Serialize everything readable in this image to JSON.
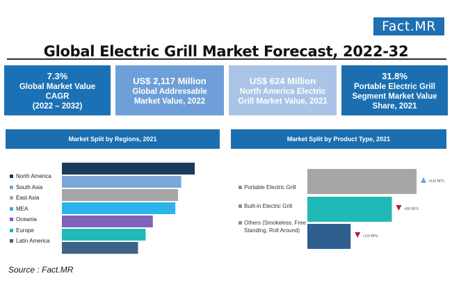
{
  "logo": "Fact.MR",
  "title": "Global Electric Grill Market Forecast, 2022-32",
  "kpis": [
    {
      "value": "7.3%",
      "l1": "Global Market Value",
      "l2": "CAGR",
      "l3": "(2022 – 2032)"
    },
    {
      "value": "US$ 2,117 Million",
      "l1": "Global Addressable",
      "l2": "Market Value, 2022"
    },
    {
      "value": "US$ 624 Million",
      "l1": "North America Electric",
      "l2": "Grill Market Value, 2021"
    },
    {
      "value": "31.8%",
      "l1": "Portable Electric Grill",
      "l2": "Segment Market Value",
      "l3": "Share, 2021"
    }
  ],
  "chart_data": [
    {
      "type": "bar",
      "title": "Market Split by Regions, 2021",
      "orientation": "horizontal",
      "categories": [
        "North America",
        "South Asia",
        "East Asia",
        "MEA",
        "Oceania",
        "Europe",
        "Latin America"
      ],
      "values": [
        29.5,
        26.5,
        25.8,
        25.2,
        20.2,
        18.6,
        16.9
      ],
      "colors": [
        "#1b3a5c",
        "#7aa6d8",
        "#a6a6a6",
        "#2db2ea",
        "#7e63b8",
        "#20b9b7",
        "#3e6388"
      ],
      "legend_position": "left",
      "grid": false
    },
    {
      "type": "bar",
      "title": "Market Split by Product Type, 2021",
      "orientation": "horizontal",
      "categories": [
        "Portable Electric Grill",
        "Built-in Electric Grill",
        "Others (Smokeless, Free Standing, Roll Around)"
      ],
      "category_lines": [
        [
          "Portable Electric Grill"
        ],
        [
          "Built-in Electric Grill"
        ],
        [
          "Others (Smokeless, Free",
          "Standing, Roll Around)"
        ]
      ],
      "values": [
        31.8,
        24.6,
        12.6
      ],
      "colors": [
        "#a6a6a6",
        "#20b9b7",
        "#2e5f8f"
      ],
      "annotations": [
        {
          "text": "+610 BPS",
          "direction": "up",
          "color": "#6e9fd6"
        },
        {
          "text": "-495 BPS",
          "direction": "down",
          "color": "#c0143c"
        },
        {
          "text": "+115 BPS",
          "direction": "down",
          "color": "#c0143c"
        }
      ],
      "grid": false
    }
  ],
  "source": "Source : Fact.MR"
}
